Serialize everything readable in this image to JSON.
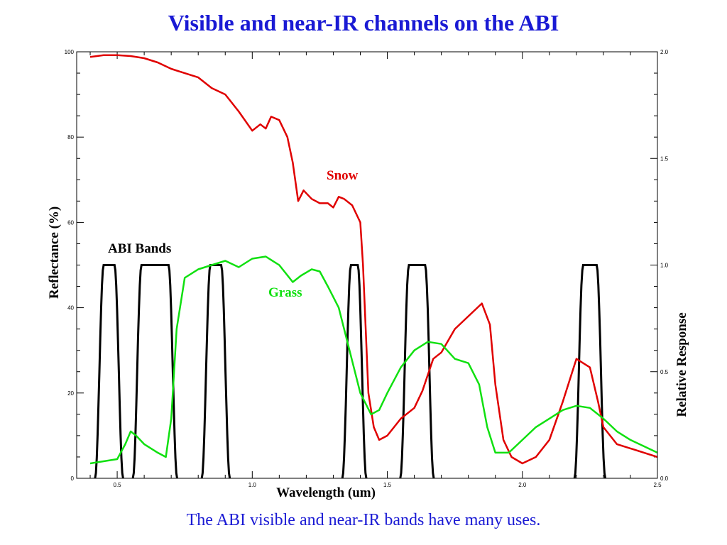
{
  "title": "Visible and near-IR channels on the ABI",
  "caption": "The ABI visible and near-IR bands have many uses.",
  "chart_data": {
    "type": "line",
    "xlabel": "Wavelength (um)",
    "ylabel": "Reflectance (%)",
    "y2label": "Relative Response",
    "xlim": [
      0.35,
      2.5
    ],
    "ylim": [
      0,
      100
    ],
    "y2lim": [
      0.0,
      2.0
    ],
    "xticks": [
      0.5,
      1.0,
      1.5,
      2.0,
      2.5
    ],
    "xtick_labels": [
      "0.5",
      "1.0",
      "1.5",
      "2.0",
      "2.5"
    ],
    "yticks": [
      0,
      20,
      40,
      60,
      80,
      100
    ],
    "ytick_labels": [
      "0",
      "20",
      "40",
      "60",
      "80",
      "100"
    ],
    "y2ticks": [
      0.0,
      0.5,
      1.0,
      1.5,
      2.0
    ],
    "y2tick_labels": [
      "0.0",
      "0.5",
      "1.0",
      "1.5",
      "2.0"
    ],
    "grid": false,
    "annotations": {
      "snow": "Snow",
      "grass": "Grass",
      "bands": "ABI Bands"
    },
    "series": [
      {
        "name": "Snow",
        "color": "#e00000",
        "x": [
          0.4,
          0.45,
          0.5,
          0.55,
          0.6,
          0.65,
          0.7,
          0.75,
          0.8,
          0.85,
          0.9,
          0.95,
          1.0,
          1.03,
          1.05,
          1.07,
          1.1,
          1.13,
          1.15,
          1.17,
          1.19,
          1.22,
          1.25,
          1.28,
          1.3,
          1.32,
          1.34,
          1.37,
          1.4,
          1.41,
          1.42,
          1.43,
          1.45,
          1.47,
          1.5,
          1.55,
          1.6,
          1.63,
          1.67,
          1.7,
          1.75,
          1.8,
          1.85,
          1.88,
          1.9,
          1.93,
          1.96,
          2.0,
          2.05,
          2.1,
          2.15,
          2.2,
          2.25,
          2.28,
          2.3,
          2.35,
          2.4,
          2.45,
          2.5
        ],
        "y": [
          98.8,
          99.2,
          99.2,
          99.0,
          98.5,
          97.5,
          96.0,
          95.0,
          94.0,
          91.5,
          90.0,
          86.0,
          81.5,
          83.0,
          82.0,
          84.8,
          84.0,
          80.0,
          74.0,
          65.0,
          67.5,
          65.5,
          64.5,
          64.5,
          63.5,
          66.0,
          65.5,
          64.0,
          60.0,
          50.0,
          35.0,
          20.0,
          12.0,
          9.0,
          10.0,
          14.0,
          16.5,
          20.5,
          28.0,
          29.5,
          35.0,
          38.0,
          41.0,
          36.0,
          22.0,
          9.0,
          5.0,
          3.5,
          5.0,
          9.0,
          18.0,
          28.0,
          26.0,
          18.0,
          12.0,
          8.0,
          7.0,
          6.0,
          5.0
        ]
      },
      {
        "name": "Grass",
        "color": "#10e010",
        "x": [
          0.4,
          0.45,
          0.5,
          0.53,
          0.55,
          0.57,
          0.6,
          0.65,
          0.68,
          0.7,
          0.72,
          0.75,
          0.8,
          0.85,
          0.9,
          0.95,
          1.0,
          1.05,
          1.1,
          1.15,
          1.18,
          1.22,
          1.25,
          1.28,
          1.32,
          1.36,
          1.4,
          1.44,
          1.47,
          1.5,
          1.55,
          1.6,
          1.65,
          1.7,
          1.75,
          1.8,
          1.84,
          1.87,
          1.9,
          1.95,
          2.0,
          2.05,
          2.1,
          2.15,
          2.2,
          2.25,
          2.3,
          2.35,
          2.4,
          2.45,
          2.5
        ],
        "y": [
          3.5,
          4.0,
          4.5,
          8.0,
          11.0,
          10.0,
          8.0,
          6.0,
          5.0,
          14.0,
          35.0,
          47.0,
          49.0,
          50.0,
          51.0,
          49.5,
          51.5,
          52.0,
          50.0,
          46.0,
          47.5,
          49.0,
          48.5,
          45.0,
          40.0,
          30.0,
          20.0,
          15.0,
          16.0,
          20.0,
          26.0,
          30.0,
          32.0,
          31.5,
          28.0,
          27.0,
          22.0,
          12.0,
          6.0,
          6.0,
          9.0,
          12.0,
          14.0,
          16.0,
          17.0,
          16.5,
          14.0,
          11.0,
          9.0,
          7.5,
          6.0
        ]
      },
      {
        "name": "ABI Bands",
        "color": "#000000",
        "bands": [
          {
            "center": 0.47,
            "width": 0.04
          },
          {
            "center": 0.64,
            "width": 0.1
          },
          {
            "center": 0.865,
            "width": 0.04
          },
          {
            "center": 1.378,
            "width": 0.025
          },
          {
            "center": 1.61,
            "width": 0.06
          },
          {
            "center": 2.25,
            "width": 0.05
          }
        ],
        "peak_response": 1.0
      }
    ]
  }
}
